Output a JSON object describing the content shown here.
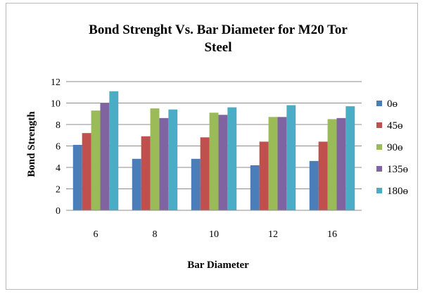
{
  "chart_data": {
    "type": "bar",
    "title_line1": "Bond Strenght Vs. Bar Diameter for M20 Tor",
    "title_line2": "Steel",
    "xlabel": "Bar Diameter",
    "ylabel": "Bond Strength",
    "categories": [
      "6",
      "8",
      "10",
      "12",
      "16"
    ],
    "ylim": [
      0,
      12
    ],
    "yticks": [
      "0",
      "2",
      "4",
      "6",
      "8",
      "10",
      "12"
    ],
    "grid": true,
    "legend_position": "right",
    "series": [
      {
        "name": "0ɵ",
        "color": "#4a7ebb",
        "values": [
          6.1,
          4.8,
          4.8,
          4.2,
          4.6
        ]
      },
      {
        "name": "45ɵ",
        "color": "#c0504d",
        "values": [
          7.2,
          6.9,
          6.8,
          6.4,
          6.4
        ]
      },
      {
        "name": "90ɵ",
        "color": "#9bbb59",
        "values": [
          9.3,
          9.5,
          9.1,
          8.7,
          8.5
        ]
      },
      {
        "name": "135ɵ",
        "color": "#8064a2",
        "values": [
          10.0,
          8.6,
          8.9,
          8.7,
          8.6
        ]
      },
      {
        "name": "180ɵ",
        "color": "#4bacc6",
        "values": [
          11.1,
          9.4,
          9.6,
          9.8,
          9.7
        ]
      }
    ]
  }
}
